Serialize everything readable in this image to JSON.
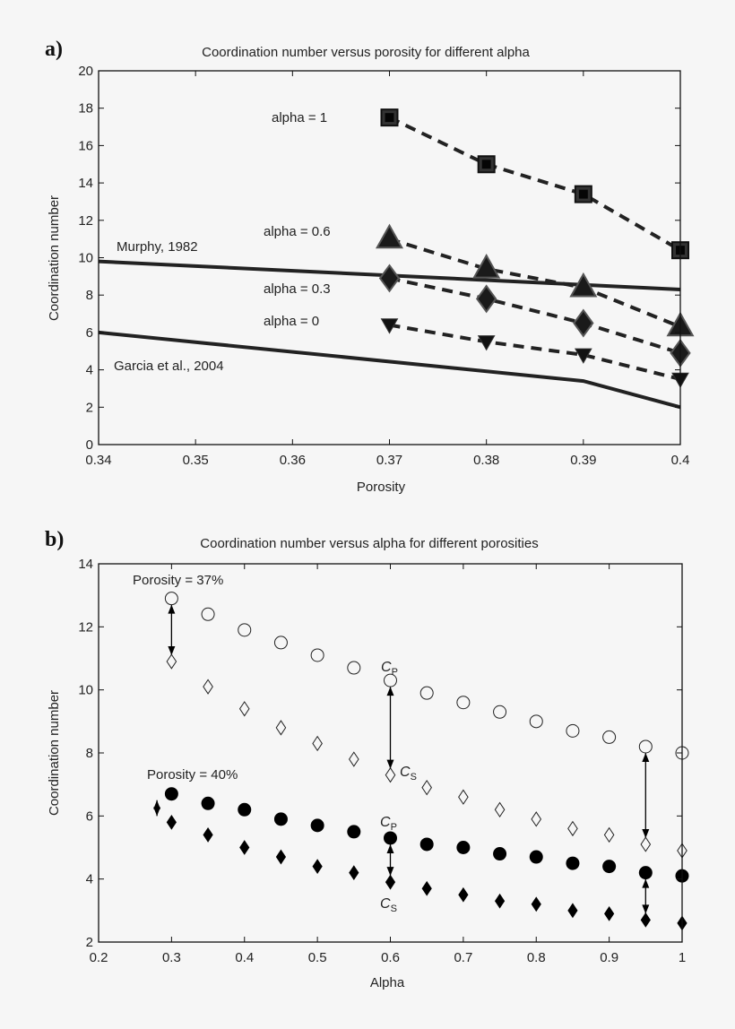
{
  "chart_data": [
    {
      "type": "line",
      "panel_label": "a)",
      "title": "Coordination number versus porosity for different alpha",
      "xlabel": "Porosity",
      "ylabel": "Coordination number",
      "xlim": [
        0.34,
        0.4
      ],
      "ylim": [
        0,
        20
      ],
      "xticks": [
        "0.34",
        "0.35",
        "0.36",
        "0.37",
        "0.38",
        "0.39",
        "0.4"
      ],
      "yticks": [
        "0",
        "2",
        "4",
        "6",
        "8",
        "10",
        "12",
        "14",
        "16",
        "18",
        "20"
      ],
      "grid": false,
      "series": [
        {
          "name": "alpha = 1",
          "marker": "square",
          "style": "dashed",
          "color": "#222222",
          "x": [
            0.37,
            0.38,
            0.39,
            0.4
          ],
          "y": [
            17.5,
            15.0,
            13.4,
            10.4
          ]
        },
        {
          "name": "alpha = 0.6",
          "marker": "triangle-up",
          "style": "dashed",
          "color": "#222222",
          "x": [
            0.37,
            0.38,
            0.39,
            0.4
          ],
          "y": [
            11.0,
            9.4,
            8.4,
            6.3
          ]
        },
        {
          "name": "alpha = 0.3",
          "marker": "diamond",
          "style": "dashed",
          "color": "#222222",
          "x": [
            0.37,
            0.38,
            0.39,
            0.4
          ],
          "y": [
            8.9,
            7.8,
            6.5,
            4.9
          ]
        },
        {
          "name": "alpha = 0",
          "marker": "triangle-down",
          "style": "dashed",
          "color": "#222222",
          "x": [
            0.37,
            0.38,
            0.39,
            0.4
          ],
          "y": [
            6.4,
            5.5,
            4.8,
            3.5
          ]
        },
        {
          "name": "Murphy, 1982",
          "marker": "none",
          "style": "solid",
          "color": "#222222",
          "x": [
            0.34,
            0.4
          ],
          "y": [
            9.8,
            8.3
          ]
        },
        {
          "name": "Garcia et al., 2004",
          "marker": "none",
          "style": "solid",
          "color": "#222222",
          "x": [
            0.34,
            0.39,
            0.4
          ],
          "y": [
            6.0,
            3.4,
            2.0
          ]
        }
      ]
    },
    {
      "type": "scatter",
      "panel_label": "b)",
      "title": "Coordination number versus alpha for different porosities",
      "xlabel": "Alpha",
      "ylabel": "Coordination number",
      "xlim": [
        0.2,
        1.0
      ],
      "ylim": [
        2,
        14
      ],
      "xticks": [
        "0.2",
        "0.3",
        "0.4",
        "0.5",
        "0.6",
        "0.7",
        "0.8",
        "0.9",
        "1"
      ],
      "yticks": [
        "2",
        "4",
        "6",
        "8",
        "10",
        "12",
        "14"
      ],
      "grid": false,
      "x": [
        0.3,
        0.35,
        0.4,
        0.45,
        0.5,
        0.55,
        0.6,
        0.65,
        0.7,
        0.75,
        0.8,
        0.85,
        0.9,
        0.95,
        1.0
      ],
      "series": [
        {
          "group": "Porosity = 37%",
          "quantity": "CP",
          "marker": "open-circle",
          "y": [
            12.9,
            12.4,
            11.9,
            11.5,
            11.1,
            10.7,
            10.3,
            9.9,
            9.6,
            9.3,
            9.0,
            8.7,
            8.5,
            8.2,
            8.0
          ]
        },
        {
          "group": "Porosity = 37%",
          "quantity": "CS",
          "marker": "open-diamond",
          "y": [
            10.9,
            10.1,
            9.4,
            8.8,
            8.3,
            7.8,
            7.3,
            6.9,
            6.6,
            6.2,
            5.9,
            5.6,
            5.4,
            5.1,
            4.9
          ]
        },
        {
          "group": "Porosity = 40%",
          "quantity": "CP",
          "marker": "filled-circle",
          "y": [
            6.7,
            6.4,
            6.2,
            5.9,
            5.7,
            5.5,
            5.3,
            5.1,
            5.0,
            4.8,
            4.7,
            4.5,
            4.4,
            4.2,
            4.1
          ]
        },
        {
          "group": "Porosity = 40%",
          "quantity": "CS",
          "marker": "filled-diamond",
          "y": [
            5.8,
            5.4,
            5.0,
            4.7,
            4.4,
            4.2,
            3.9,
            3.7,
            3.5,
            3.3,
            3.2,
            3.0,
            2.9,
            2.7,
            2.6
          ]
        }
      ],
      "annotations": [
        {
          "text": "Porosity = 37%"
        },
        {
          "text": "Porosity = 40%"
        },
        {
          "text_main": "C",
          "text_sub": "P",
          "label": "CP"
        },
        {
          "text_main": "C",
          "text_sub": "S",
          "label": "CS"
        },
        {
          "text_main": "C",
          "text_sub": "P",
          "label": "CP"
        },
        {
          "text_main": "C",
          "text_sub": "S",
          "label": "CS"
        }
      ],
      "arrows": [
        {
          "x": 0.3,
          "y_from": 12.9,
          "y_to": 10.9
        },
        {
          "x": 0.6,
          "y_from": 10.3,
          "y_to": 7.3
        },
        {
          "x": 0.95,
          "y_from": 8.2,
          "y_to": 5.1
        },
        {
          "x": 0.28,
          "y_from": 6.7,
          "y_to": 5.8
        },
        {
          "x": 0.6,
          "y_from": 5.3,
          "y_to": 3.9
        },
        {
          "x": 0.95,
          "y_from": 4.2,
          "y_to": 2.7
        }
      ]
    }
  ]
}
